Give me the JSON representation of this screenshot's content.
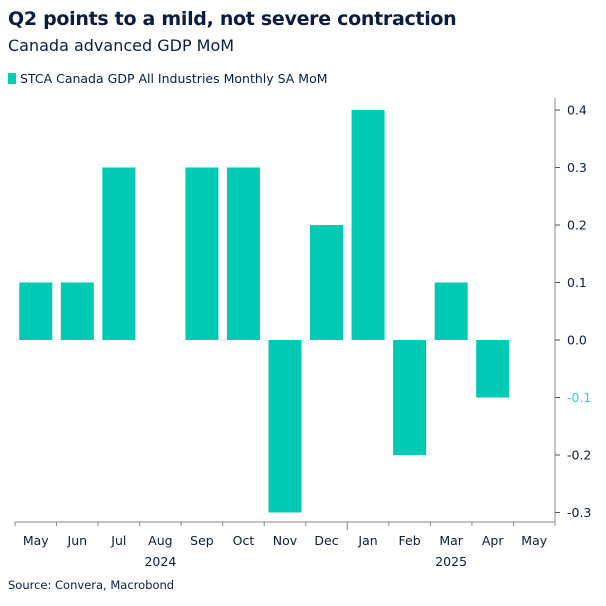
{
  "chart_data": {
    "type": "bar",
    "title": "Q2 points to a mild, not severe contraction",
    "subtitle": "Canada advanced GDP MoM",
    "categories": [
      "May",
      "Jun",
      "Jul",
      "Aug",
      "Sep",
      "Oct",
      "Nov",
      "Dec",
      "Jan",
      "Feb",
      "Mar",
      "Apr",
      "May"
    ],
    "year_labels": [
      {
        "label": "2024",
        "under": "Aug"
      },
      {
        "label": "2025",
        "under": "Mar"
      }
    ],
    "series": [
      {
        "name": "STCA Canada GDP All Industries Monthly SA MoM",
        "values": [
          0.1,
          0.1,
          0.3,
          0,
          0.3,
          0.3,
          -0.3,
          0.2,
          0.4,
          -0.2,
          0.1,
          -0.1,
          null
        ],
        "color": "#00C9B4"
      }
    ],
    "ylim": [
      -0.33,
      0.43
    ],
    "yticks": [
      "0.4",
      "0.3",
      "0.2",
      "0.1",
      "0.0",
      "-0.1",
      "-0.2",
      "-0.3"
    ],
    "ytick_values": [
      0.4,
      0.3,
      0.2,
      0.1,
      0.0,
      -0.1,
      -0.2,
      -0.3
    ],
    "highlighted_tick": "-0.1",
    "highlight_color": "#2fd6c8",
    "y_axis_position": "right",
    "grid": false,
    "legend_position": "top-left",
    "source": "Source: Convera, Macrobond"
  }
}
